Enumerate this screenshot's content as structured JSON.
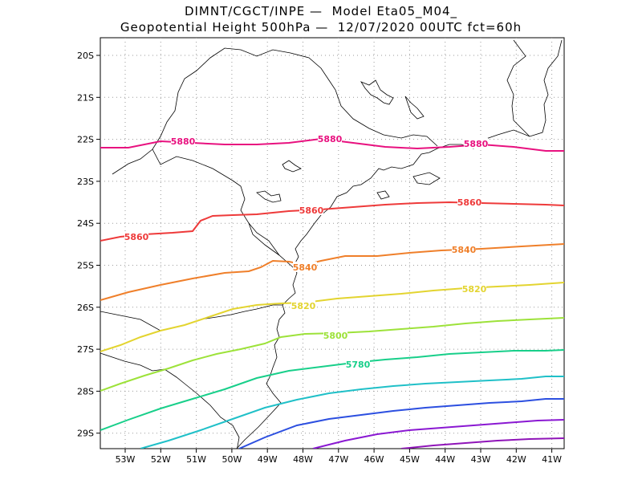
{
  "title": {
    "line1": "DIMNT/CGCT/INPE —  Model Eta05_M04_",
    "line2": "Geopotential Height 500hPa —  12/07/2020 00UTC fct=60h"
  },
  "map": {
    "lat_labels": [
      "20S",
      "21S",
      "22S",
      "23S",
      "24S",
      "25S",
      "26S",
      "27S",
      "28S",
      "29S"
    ],
    "lon_labels": [
      "53W",
      "52W",
      "51W",
      "50W",
      "49W",
      "48W",
      "47W",
      "46W",
      "45W",
      "44W",
      "43W",
      "42W",
      "41W"
    ]
  },
  "contours": [
    {
      "value": "5880",
      "color": "#e8117f"
    },
    {
      "value": "5860",
      "color": "#ee3a3a"
    },
    {
      "value": "5840",
      "color": "#ef7f2a"
    },
    {
      "value": "5820",
      "color": "#e3d430"
    },
    {
      "value": "5800",
      "color": "#9de23a"
    },
    {
      "value": "5780",
      "color": "#18cf8a"
    },
    {
      "value": "",
      "color": "#20c0c8"
    },
    {
      "value": "",
      "color": "#2c4fe0"
    },
    {
      "value": "",
      "color": "#8a18d2"
    },
    {
      "value": "",
      "color": "#8f14b8"
    }
  ]
}
